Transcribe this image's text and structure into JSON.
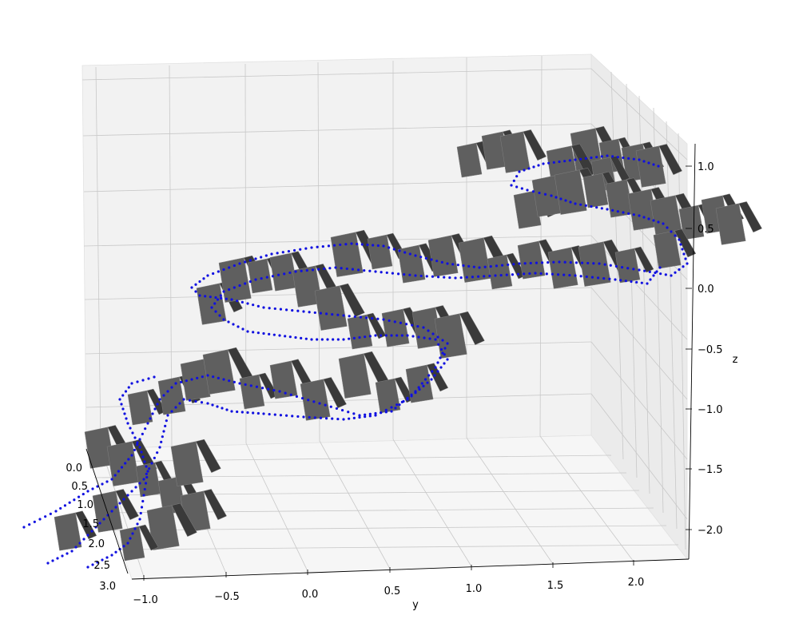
{
  "chart_data": {
    "type": "scatter3d",
    "title": "",
    "axes": {
      "x": {
        "label": "",
        "ticks": [
          "0.0",
          "0.5",
          "1.0",
          "1.5",
          "2.0",
          "2.5",
          "3.0"
        ],
        "range": [
          0.0,
          3.0
        ]
      },
      "y": {
        "label": "y",
        "ticks": [
          "−1.0",
          "−0.5",
          "0.0",
          "0.5",
          "1.0",
          "1.5",
          "2.0"
        ],
        "range": [
          -1.05,
          2.3
        ]
      },
      "z": {
        "label": "z",
        "ticks": [
          "−2.0",
          "−1.5",
          "−1.0",
          "−0.5",
          "0.0",
          "0.5",
          "1.0"
        ],
        "range": [
          -2.2,
          1.2
        ]
      }
    },
    "grid": true,
    "colors": {
      "pane_back": "#f2f2f2",
      "pane_side": "#ebebeb",
      "pane_floor": "#f6f6f6",
      "grid": "#c8c8c8",
      "trajectory": "#1010e0",
      "camera_face": "#5f5f5f",
      "camera_side": "#3a3a3a",
      "camera_edge": "#808080"
    },
    "series": [
      {
        "type": "trajectory-points",
        "color": "#1010e0"
      },
      {
        "type": "camera-pose-planes",
        "color": "#5f5f5f"
      }
    ]
  }
}
